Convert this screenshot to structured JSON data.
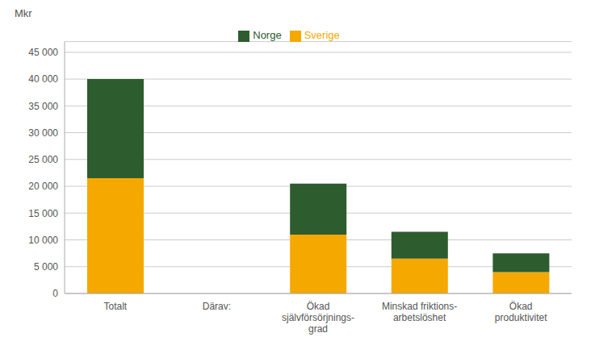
{
  "chart_data": {
    "type": "bar",
    "stacked": true,
    "ylabel": "Mkr",
    "categories": [
      "Totalt",
      "Därav:",
      "Ökad\nsjälvförsörjnings-\ngrad",
      "Minskad friktions-\narbetslöshet",
      "Ökad\nproduktivitet"
    ],
    "series": [
      {
        "name": "Sverige",
        "color": "#F5A800",
        "values": [
          21500,
          0,
          11000,
          6500,
          4000
        ]
      },
      {
        "name": "Norge",
        "color": "#2D5C2E",
        "values": [
          18500,
          0,
          9500,
          5000,
          3500
        ]
      }
    ],
    "ylim": [
      0,
      47000
    ],
    "yticks": [
      0,
      {
        "value": 5000,
        "label": "5 000"
      },
      {
        "value": 10000,
        "label": "10 000"
      },
      {
        "value": 15000,
        "label": "15 000"
      },
      {
        "value": 20000,
        "label": "20 000"
      },
      {
        "value": 25000,
        "label": "25 000"
      },
      {
        "value": 30000,
        "label": "30 000"
      },
      {
        "value": 35000,
        "label": "35 000"
      },
      {
        "value": 40000,
        "label": "40 000"
      },
      {
        "value": 45000,
        "label": "45 000"
      }
    ],
    "grid": true,
    "legend": "top"
  }
}
